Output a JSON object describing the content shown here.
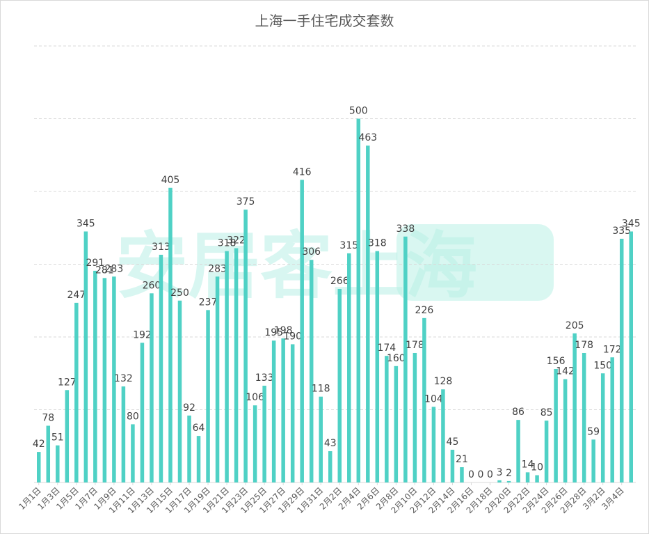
{
  "title": "上海一手住宅成交套数",
  "watermark": "安居客上海",
  "colors": {
    "bar": "#4fd1c5",
    "grid": "#d9d9d9",
    "label": "#404040",
    "axis_text": "#595959",
    "watermark": "#b9f0e6"
  },
  "chart_data": {
    "type": "bar",
    "title": "上海一手住宅成交套数",
    "xlabel": "",
    "ylabel": "",
    "ylim": [
      0,
      600
    ],
    "grid": true,
    "legend": "none",
    "categories": [
      "1月1日",
      "1月2日",
      "1月3日",
      "1月4日",
      "1月5日",
      "1月6日",
      "1月7日",
      "1月8日",
      "1月9日",
      "1月10日",
      "1月11日",
      "1月12日",
      "1月13日",
      "1月14日",
      "1月15日",
      "1月16日",
      "1月17日",
      "1月18日",
      "1月19日",
      "1月20日",
      "1月21日",
      "1月22日",
      "1月23日",
      "1月24日",
      "1月25日",
      "1月26日",
      "1月27日",
      "1月28日",
      "1月29日",
      "1月30日",
      "1月31日",
      "2月1日",
      "2月2日",
      "2月3日",
      "2月4日",
      "2月5日",
      "2月6日",
      "2月7日",
      "2月8日",
      "2月9日",
      "2月10日",
      "2月11日",
      "2月12日",
      "2月13日",
      "2月14日",
      "2月15日",
      "2月16日",
      "2月17日",
      "2月18日",
      "2月19日",
      "2月20日",
      "2月21日",
      "2月22日",
      "2月23日",
      "2月24日",
      "2月25日",
      "2月26日",
      "2月27日",
      "2月28日",
      "3月1日",
      "3月2日",
      "3月3日",
      "3月4日",
      "3月5日"
    ],
    "tick_labels": [
      "1月1日",
      "1月3日",
      "1月5日",
      "1月7日",
      "1月9日",
      "1月11日",
      "1月13日",
      "1月15日",
      "1月17日",
      "1月19日",
      "1月21日",
      "1月23日",
      "1月25日",
      "1月27日",
      "1月29日",
      "1月31日",
      "2月2日",
      "2月4日",
      "2月6日",
      "2月8日",
      "2月10日",
      "2月12日",
      "2月14日",
      "2月16日",
      "2月18日",
      "2月20日",
      "2月22日",
      "2月24日",
      "2月26日",
      "2月28日",
      "3月2日",
      "3月4日"
    ],
    "values": [
      42,
      78,
      51,
      127,
      247,
      345,
      291,
      281,
      283,
      132,
      80,
      192,
      260,
      313,
      405,
      250,
      92,
      64,
      237,
      283,
      318,
      322,
      375,
      106,
      133,
      195,
      198,
      190,
      416,
      306,
      118,
      43,
      266,
      315,
      500,
      463,
      318,
      174,
      160,
      338,
      178,
      226,
      104,
      128,
      45,
      21,
      0,
      0,
      0,
      3,
      2,
      86,
      14,
      10,
      85,
      156,
      142,
      205,
      178,
      59,
      150,
      172,
      335,
      345
    ]
  }
}
